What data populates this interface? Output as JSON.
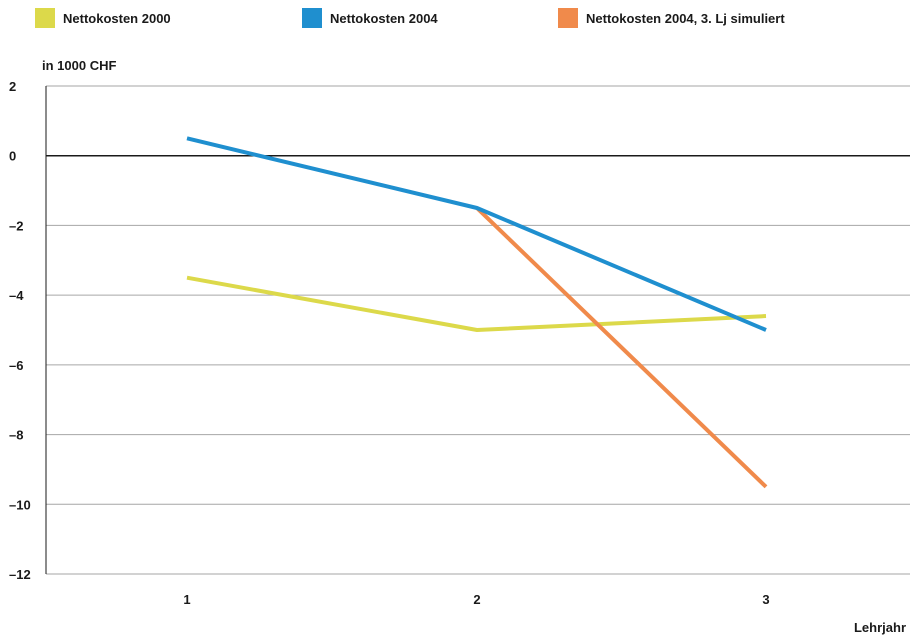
{
  "colors": {
    "series": [
      "#dcd94a",
      "#1f8fcf",
      "#f08a4b"
    ],
    "grid": "#a6a6a6",
    "zero_line": "#1a1a1a"
  },
  "chart_data": {
    "type": "line",
    "xlabel": "Lehrjahr",
    "ylabel": "in 1000 CHF",
    "x": [
      1,
      2,
      3
    ],
    "xticks": [
      "1",
      "2",
      "3"
    ],
    "ylim": [
      -12,
      2
    ],
    "yticks": [
      2,
      0,
      -2,
      -4,
      -6,
      -8,
      -10,
      -12
    ],
    "ytick_labels": [
      "2",
      "0",
      "–2",
      "–4",
      "–6",
      "–8",
      "–10",
      "–12"
    ],
    "grid": true,
    "legend_position": "top",
    "series": [
      {
        "name": "Nettokosten 2000",
        "x": [
          1,
          2,
          3
        ],
        "values": [
          -3.5,
          -5.0,
          -4.6
        ]
      },
      {
        "name": "Nettokosten 2004",
        "x": [
          1,
          2,
          3
        ],
        "values": [
          0.5,
          -1.5,
          -5.0
        ]
      },
      {
        "name": "Nettokosten 2004, 3. Lj simuliert",
        "x": [
          2,
          3
        ],
        "values": [
          -1.5,
          -9.5
        ]
      }
    ]
  }
}
